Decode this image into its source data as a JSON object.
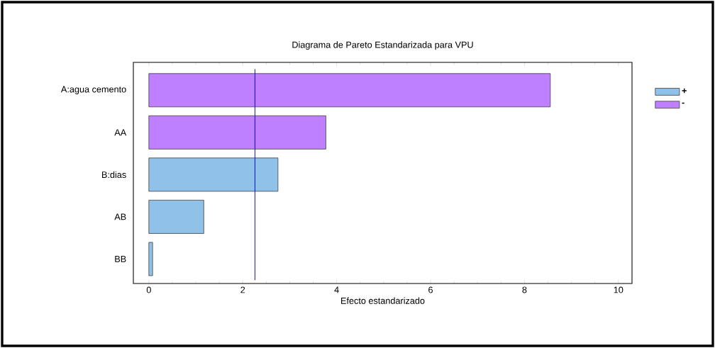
{
  "chart_data": {
    "type": "bar",
    "orientation": "horizontal",
    "title": "Diagrama de Pareto Estandarizada para VPU",
    "xlabel": "Efecto estandarizado",
    "categories": [
      "A:agua cemento",
      "AA",
      "B:dias",
      "AB",
      "BB"
    ],
    "series": [
      {
        "name": "+",
        "color": "#8fc1e9",
        "values": [
          null,
          null,
          2.75,
          1.17,
          0.08
        ]
      },
      {
        "name": "-",
        "color": "#bf80ff",
        "values": [
          8.55,
          3.77,
          null,
          null,
          null
        ]
      }
    ],
    "xlim": [
      -0.33,
      10.29
    ],
    "xticks": [
      0,
      2,
      4,
      6,
      8,
      10
    ],
    "ref_lines": [
      {
        "axis": "x",
        "value": 2.26,
        "color": "#0000ff"
      }
    ],
    "legend": "top right"
  }
}
